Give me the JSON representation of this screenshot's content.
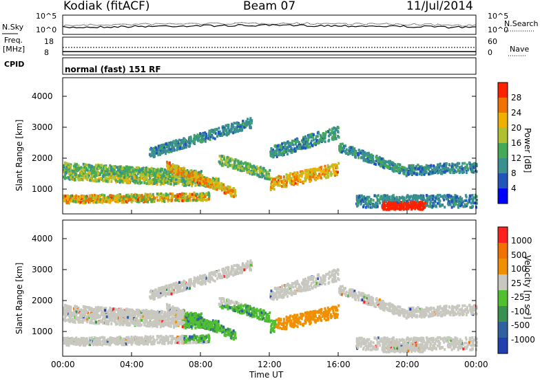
{
  "header": {
    "station": "Kodiak (fitACF)",
    "beam": "Beam 07",
    "date": "11/Jul/2014"
  },
  "panels": {
    "nsky_label": "N.Sky",
    "nsearch_label": "N.Search",
    "freq_label_1": "Freq.",
    "freq_label_2": "[MHz]",
    "nave_label": "Nave",
    "cpid_label": "CPID",
    "cpid_text": "normal (fast) 151 RF",
    "noise_ticks_left": [
      "10^5",
      "10^0"
    ],
    "noise_ticks_right": [
      "10^5",
      "10^0"
    ],
    "freq_ticks": [
      "18",
      "8"
    ],
    "nave_ticks": [
      "60",
      "0"
    ]
  },
  "chart_data": [
    {
      "type": "heatmap",
      "title": "",
      "xlabel": "Time UT",
      "ylabel": "Slant Range [km]",
      "x_ticks": [
        "00:00",
        "04:00",
        "08:00",
        "12:00",
        "16:00",
        "20:00",
        "00:00"
      ],
      "xlim_hours": [
        0,
        24
      ],
      "ylim": [
        200,
        4600
      ],
      "y_ticks": [
        1000,
        2000,
        3000,
        4000
      ],
      "colorbar": {
        "label": "Power [dB]",
        "ticks": [
          "28",
          "24",
          "20",
          "16",
          "12",
          "8",
          "4"
        ],
        "colors": [
          "#0000ff",
          "#2255bb",
          "#3a8f8f",
          "#44aa55",
          "#b0c030",
          "#f0b000",
          "#f07000",
          "#ff2000"
        ]
      }
    },
    {
      "type": "heatmap",
      "title": "",
      "xlabel": "Time UT",
      "ylabel": "Slant Range [km]",
      "x_ticks": [
        "00:00",
        "04:00",
        "08:00",
        "12:00",
        "16:00",
        "20:00",
        "00:00"
      ],
      "xlim_hours": [
        0,
        24
      ],
      "ylim": [
        200,
        4600
      ],
      "y_ticks": [
        1000,
        2000,
        3000,
        4000
      ],
      "colorbar": {
        "label": "Velocity [m s⁻¹]",
        "ticks": [
          "1000",
          "500",
          "100",
          "25",
          "-25",
          "-100",
          "-500",
          "-1000"
        ],
        "colors": [
          "#2040b0",
          "#3060a0",
          "#3a9050",
          "#50c030",
          "#c8c8c0",
          "#f09000",
          "#f07000",
          "#ff2020"
        ]
      }
    }
  ]
}
